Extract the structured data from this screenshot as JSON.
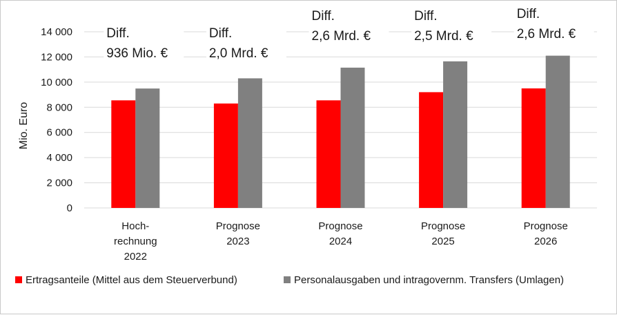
{
  "chart_data": {
    "type": "bar",
    "title": "",
    "xlabel": "",
    "ylabel": "Mio. Euro",
    "ylim": [
      0,
      14000
    ],
    "yticks": [
      "0",
      "2 000",
      "4 000",
      "6 000",
      "8 000",
      "10 000",
      "12 000",
      "14 000"
    ],
    "ytick_values": [
      0,
      2000,
      4000,
      6000,
      8000,
      10000,
      12000,
      14000
    ],
    "grid": true,
    "legend_position": "bottom",
    "categories": [
      [
        "Hoch-",
        "rechnung",
        "2022"
      ],
      [
        "Prognose",
        "2023"
      ],
      [
        "Prognose",
        "2024"
      ],
      [
        "Prognose",
        "2025"
      ],
      [
        "Prognose",
        "2026"
      ]
    ],
    "series": [
      {
        "name": "Ertragsanteile (Mittel aus dem Steuerverbund)",
        "color": "#ff0000",
        "values": [
          8550,
          8300,
          8550,
          9200,
          9500
        ]
      },
      {
        "name": "Personalausgaben und intragovernm. Transfers (Umlagen)",
        "color": "#808080",
        "values": [
          9490,
          10300,
          11150,
          11650,
          12100
        ]
      }
    ],
    "annotations": [
      [
        "Diff.",
        "936 Mio. €"
      ],
      [
        "Diff.",
        "2,0 Mrd. €"
      ],
      [
        "Diff.",
        "2,6 Mrd. €"
      ],
      [
        "Diff.",
        "2,5 Mrd. €"
      ],
      [
        "Diff.",
        "2,6 Mrd. €"
      ]
    ]
  }
}
